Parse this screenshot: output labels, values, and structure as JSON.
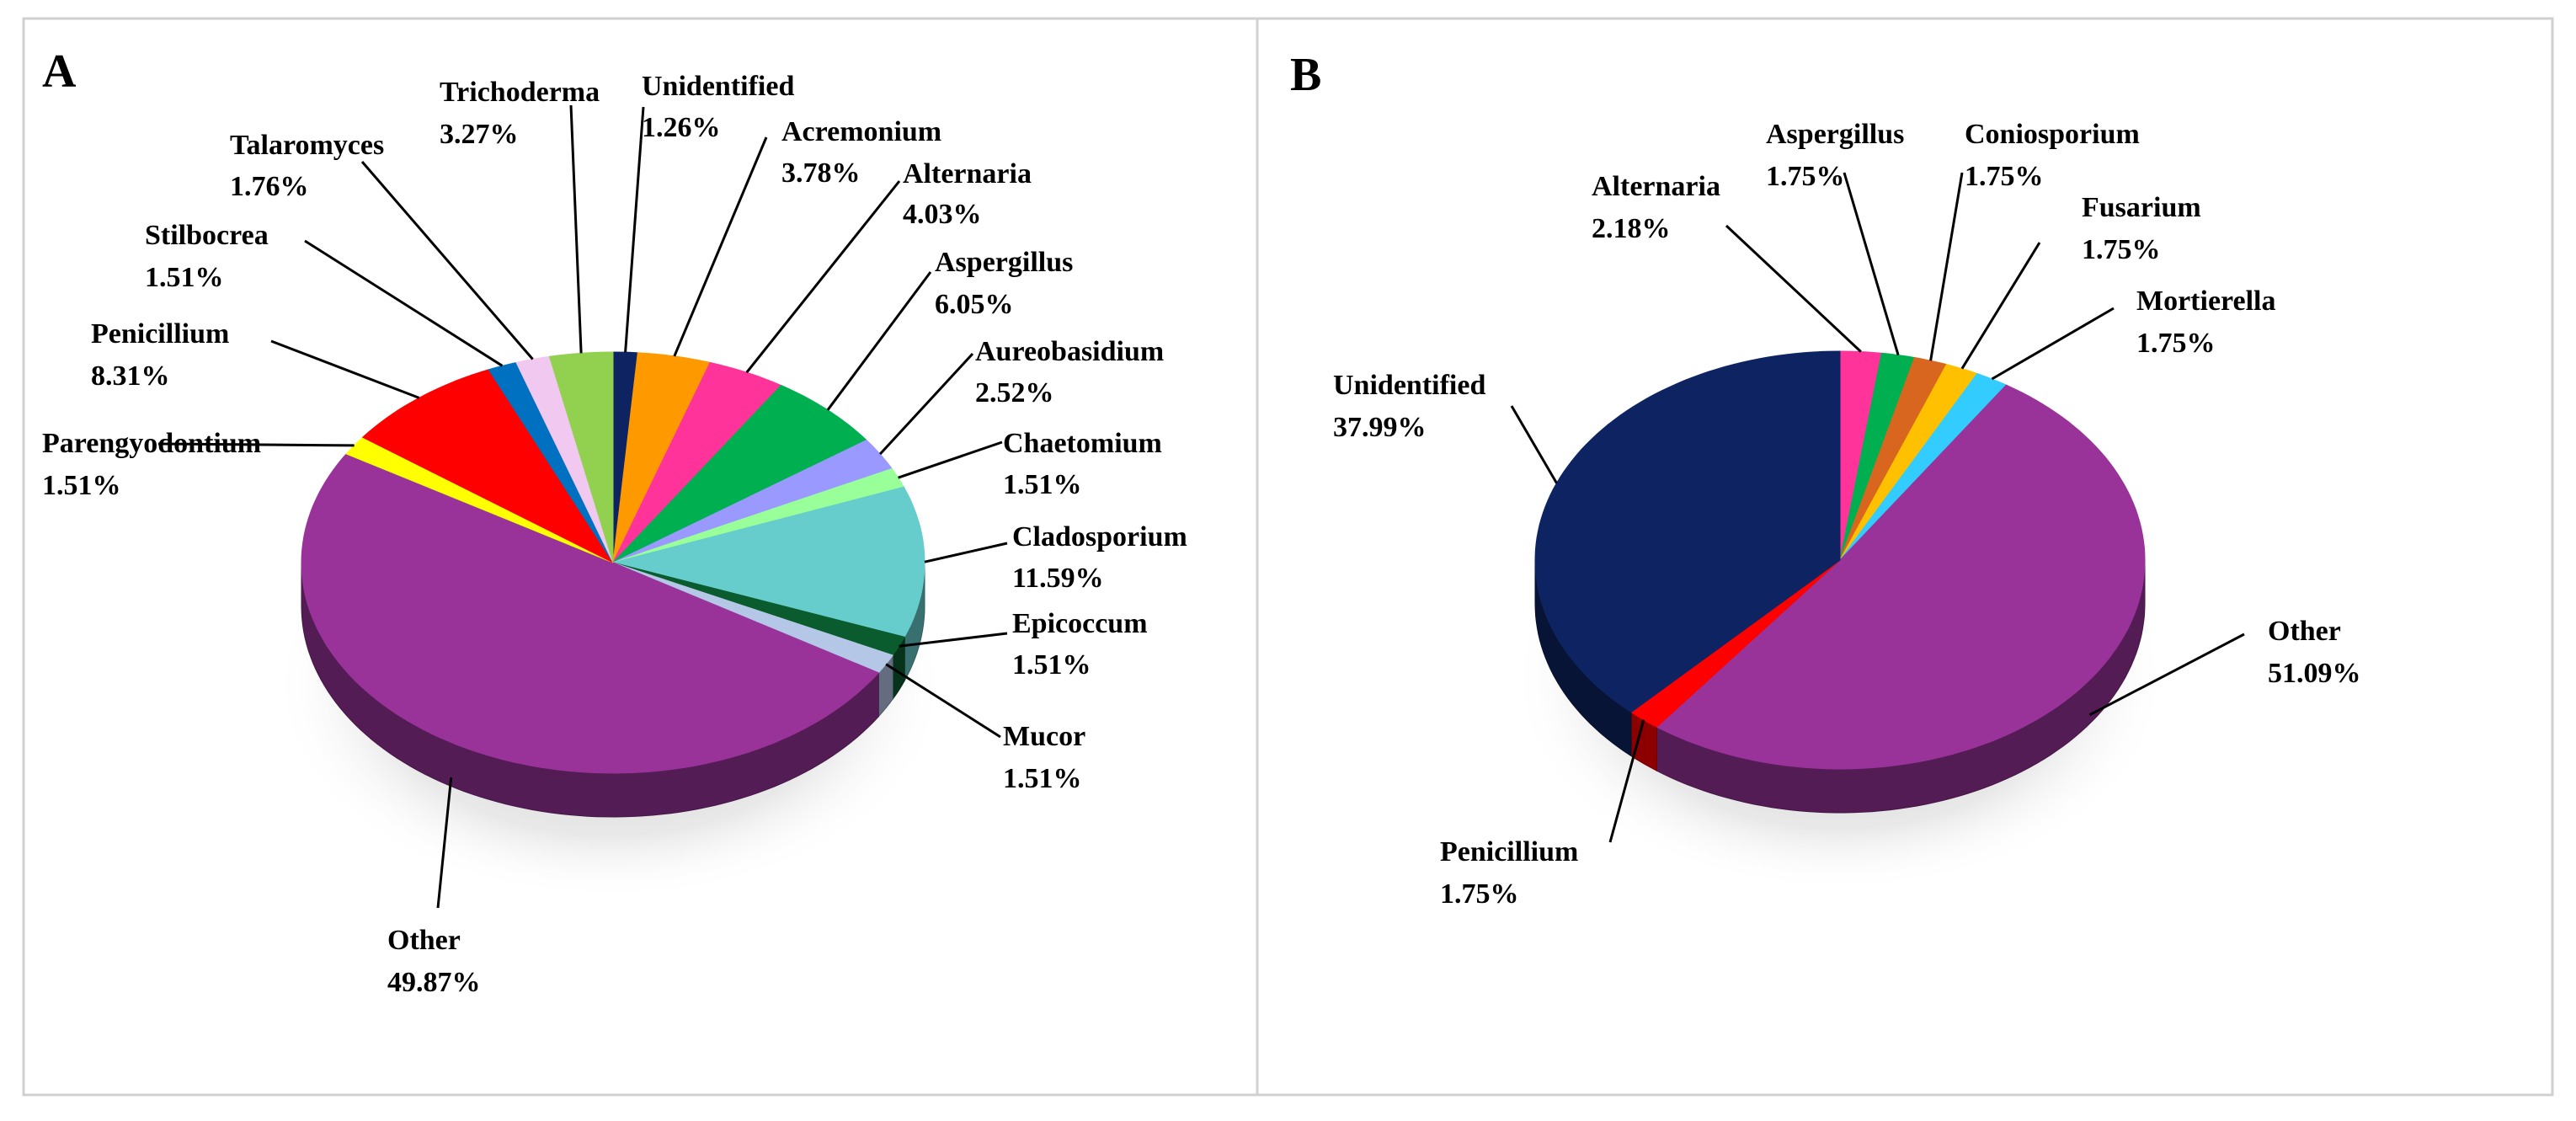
{
  "chart_data": [
    {
      "type": "pie",
      "panel_label": "A",
      "center_color": "",
      "slices": [
        {
          "name": "Unidentified",
          "value": 1.26,
          "label": "1.26%",
          "color": "#0e2462"
        },
        {
          "name": "Acremonium",
          "value": 3.78,
          "label": "3.78%",
          "color": "#ff9900"
        },
        {
          "name": "Alternaria",
          "value": 4.03,
          "label": "4.03%",
          "color": "#ff3399"
        },
        {
          "name": "Aspergillus",
          "value": 6.05,
          "label": "6.05%",
          "color": "#00b050"
        },
        {
          "name": "Aureobasidium",
          "value": 2.52,
          "label": "2.52%",
          "color": "#9999ff"
        },
        {
          "name": "Chaetomium",
          "value": 1.51,
          "label": "1.51%",
          "color": "#99ff99"
        },
        {
          "name": "Cladosporium",
          "value": 11.59,
          "label": "11.59%",
          "color": "#66cccc"
        },
        {
          "name": "Epicoccum",
          "value": 1.51,
          "label": "1.51%",
          "color": "#0a5c2e"
        },
        {
          "name": "Mucor",
          "value": 1.51,
          "label": "1.51%",
          "color": "#b4c7e7"
        },
        {
          "name": "Other",
          "value": 49.87,
          "label": "49.87%",
          "color": "#993399"
        },
        {
          "name": "Parengyodontium",
          "value": 1.51,
          "label": "1.51%",
          "color": "#ffff00"
        },
        {
          "name": "Penicillium",
          "value": 8.31,
          "label": "8.31%",
          "color": "#ff0000"
        },
        {
          "name": "Stilbocrea",
          "value": 1.51,
          "label": "1.51%",
          "color": "#0070c0"
        },
        {
          "name": "Talaromyces",
          "value": 1.76,
          "label": "1.76%",
          "color": "#f0c8f0"
        },
        {
          "name": "Trichoderma",
          "value": 3.27,
          "label": "3.27%",
          "color": "#92d050"
        }
      ]
    },
    {
      "type": "pie",
      "panel_label": "B",
      "slices": [
        {
          "name": "Alternaria",
          "value": 2.18,
          "label": "2.18%",
          "color": "#ff3399"
        },
        {
          "name": "Aspergillus",
          "value": 1.75,
          "label": "1.75%",
          "color": "#00b050"
        },
        {
          "name": "Coniosporium",
          "value": 1.75,
          "label": "1.75%",
          "color": "#d9661f"
        },
        {
          "name": "Fusarium",
          "value": 1.75,
          "label": "1.75%",
          "color": "#ffc000"
        },
        {
          "name": "Mortierella",
          "value": 1.75,
          "label": "1.75%",
          "color": "#33ccff"
        },
        {
          "name": "Other",
          "value": 51.09,
          "label": "51.09%",
          "color": "#993399"
        },
        {
          "name": "Penicillium",
          "value": 1.75,
          "label": "1.75%",
          "color": "#ff0000"
        },
        {
          "name": "Unidentified",
          "value": 37.99,
          "label": "37.99%",
          "color": "#0e2462"
        }
      ]
    }
  ]
}
